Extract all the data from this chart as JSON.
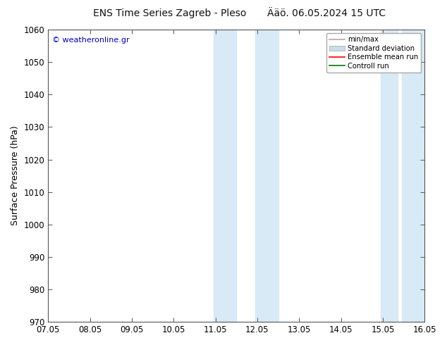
{
  "title_left": "ENS Time Series Zagreb - Pleso",
  "title_right": "Ääö. 06.05.2024 15 UTC",
  "ylabel": "Surface Pressure (hPa)",
  "ylim": [
    970,
    1060
  ],
  "yticks": [
    970,
    980,
    990,
    1000,
    1010,
    1020,
    1030,
    1040,
    1050,
    1060
  ],
  "xtick_labels": [
    "07.05",
    "08.05",
    "09.05",
    "10.05",
    "11.05",
    "12.05",
    "13.05",
    "14.05",
    "15.05",
    "16.05"
  ],
  "xtick_positions": [
    0,
    1,
    2,
    3,
    4,
    5,
    6,
    7,
    8,
    9
  ],
  "xlim": [
    0,
    9
  ],
  "shaded_regions": [
    {
      "xmin": 3.95,
      "xmax": 4.5,
      "color": "#d8eaf5"
    },
    {
      "xmin": 4.95,
      "xmax": 5.5,
      "color": "#d8eaf5"
    },
    {
      "xmin": 7.95,
      "xmax": 8.35,
      "color": "#d8eaf5"
    },
    {
      "xmin": 8.45,
      "xmax": 9.0,
      "color": "#d8eaf5"
    }
  ],
  "watermark_text": "© weatheronline.gr",
  "watermark_color": "#0000cc",
  "background_color": "#ffffff",
  "plot_bg_color": "#ffffff",
  "legend_items": [
    {
      "label": "min/max",
      "color": "#aaaaaa",
      "lw": 1.2,
      "style": "line"
    },
    {
      "label": "Standard deviation",
      "color": "#c8dcea",
      "style": "fill"
    },
    {
      "label": "Ensemble mean run",
      "color": "#ff0000",
      "lw": 1.2,
      "style": "line"
    },
    {
      "label": "Controll run",
      "color": "#007700",
      "lw": 1.2,
      "style": "line"
    }
  ],
  "title_fontsize": 10,
  "tick_fontsize": 8.5,
  "ylabel_fontsize": 9,
  "figsize": [
    6.34,
    4.9
  ],
  "dpi": 100
}
